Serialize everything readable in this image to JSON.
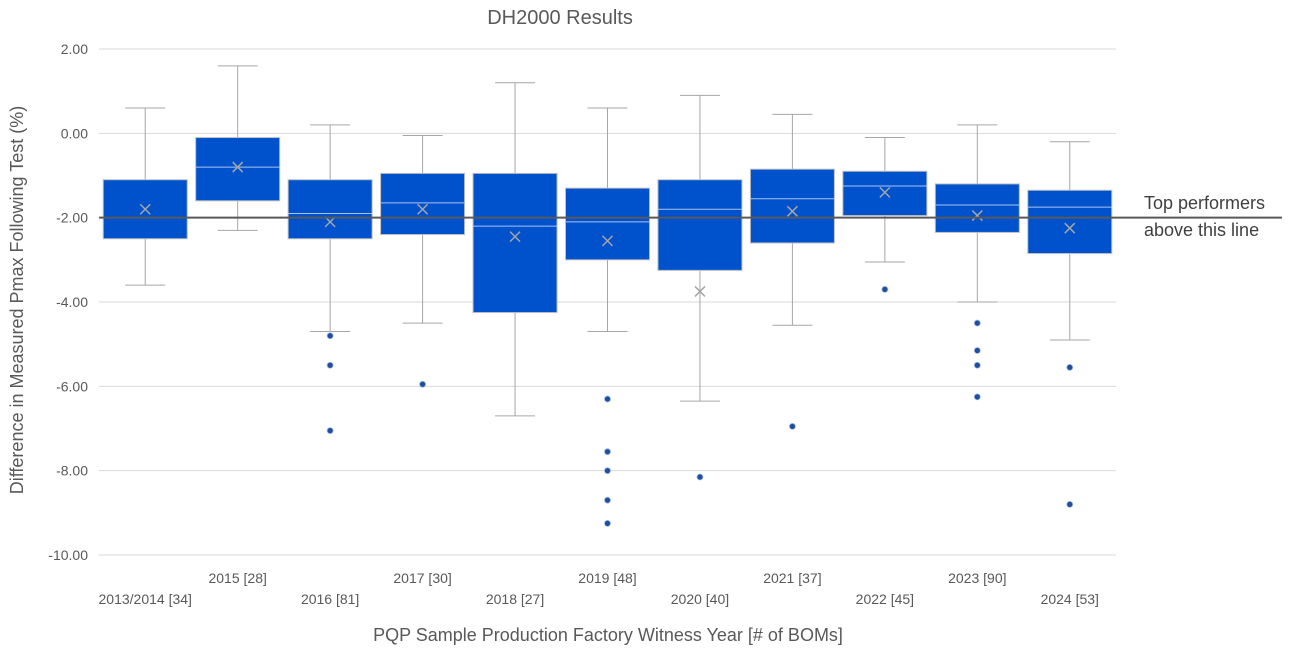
{
  "chart_data": {
    "type": "box",
    "title": "DH2000 Results",
    "xlabel": "PQP Sample Production Factory Witness Year [# of BOMs]",
    "ylabel": "Difference in Measured Pmax Following Test (%)",
    "ylim": [
      -10,
      2
    ],
    "yticks": [
      "2.00",
      "0.00",
      "-2.00",
      "-4.00",
      "-6.00",
      "-8.00",
      "-10.00"
    ],
    "grid": true,
    "reference_line": {
      "y": -2.0,
      "label_lines": [
        "Top performers",
        "above this line"
      ]
    },
    "categories": [
      "2013/2014 [34]",
      "2015 [28]",
      "2016 [81]",
      "2017 [30]",
      "2018 [27]",
      "2019 [48]",
      "2020 [40]",
      "2021 [37]",
      "2022 [45]",
      "2023 [90]",
      "2024 [53]"
    ],
    "boxes": [
      {
        "min": -3.6,
        "q1": -2.5,
        "median": -2.0,
        "q3": -1.1,
        "max": 0.6,
        "mean": -1.8,
        "outliers": []
      },
      {
        "min": -2.3,
        "q1": -1.6,
        "median": -0.8,
        "q3": -0.1,
        "max": 1.6,
        "mean": -0.8,
        "outliers": []
      },
      {
        "min": -4.7,
        "q1": -2.5,
        "median": -1.9,
        "q3": -1.1,
        "max": 0.2,
        "mean": -2.1,
        "outliers": [
          -4.8,
          -5.5,
          -7.05
        ]
      },
      {
        "min": -4.5,
        "q1": -2.4,
        "median": -1.65,
        "q3": -0.95,
        "max": -0.05,
        "mean": -1.8,
        "outliers": [
          -5.95
        ]
      },
      {
        "min": -6.7,
        "q1": -4.25,
        "median": -2.2,
        "q3": -0.95,
        "max": 1.2,
        "mean": -2.45,
        "outliers": []
      },
      {
        "min": -4.7,
        "q1": -3.0,
        "median": -2.1,
        "q3": -1.3,
        "max": 0.6,
        "mean": -2.55,
        "outliers": [
          -6.3,
          -7.55,
          -8.0,
          -8.7,
          -9.25
        ]
      },
      {
        "min": -6.35,
        "q1": -3.25,
        "median": -1.8,
        "q3": -1.1,
        "max": 0.9,
        "mean": -3.75,
        "outliers": [
          -8.15
        ]
      },
      {
        "min": -4.55,
        "q1": -2.6,
        "median": -1.55,
        "q3": -0.85,
        "max": 0.45,
        "mean": -1.85,
        "outliers": [
          -6.95
        ]
      },
      {
        "min": -3.05,
        "q1": -1.95,
        "median": -1.25,
        "q3": -0.9,
        "max": -0.1,
        "mean": -1.4,
        "outliers": [
          -3.7
        ]
      },
      {
        "min": -4.0,
        "q1": -2.35,
        "median": -1.7,
        "q3": -1.2,
        "max": 0.2,
        "mean": -1.95,
        "outliers": [
          -4.5,
          -5.15,
          -5.5,
          -6.25
        ]
      },
      {
        "min": -4.9,
        "q1": -2.85,
        "median": -1.75,
        "q3": -1.35,
        "max": -0.2,
        "mean": -2.25,
        "outliers": [
          -5.55,
          -8.8
        ]
      }
    ],
    "colors": {
      "box_fill": "#0052CC",
      "whisker": "#A6A6A6",
      "median": "#A9C4F0",
      "mean_marker": "#A6A6A6",
      "outlier": "#1F4E9E",
      "reference_line": "#595959",
      "grid": "#D9D9D9"
    }
  }
}
